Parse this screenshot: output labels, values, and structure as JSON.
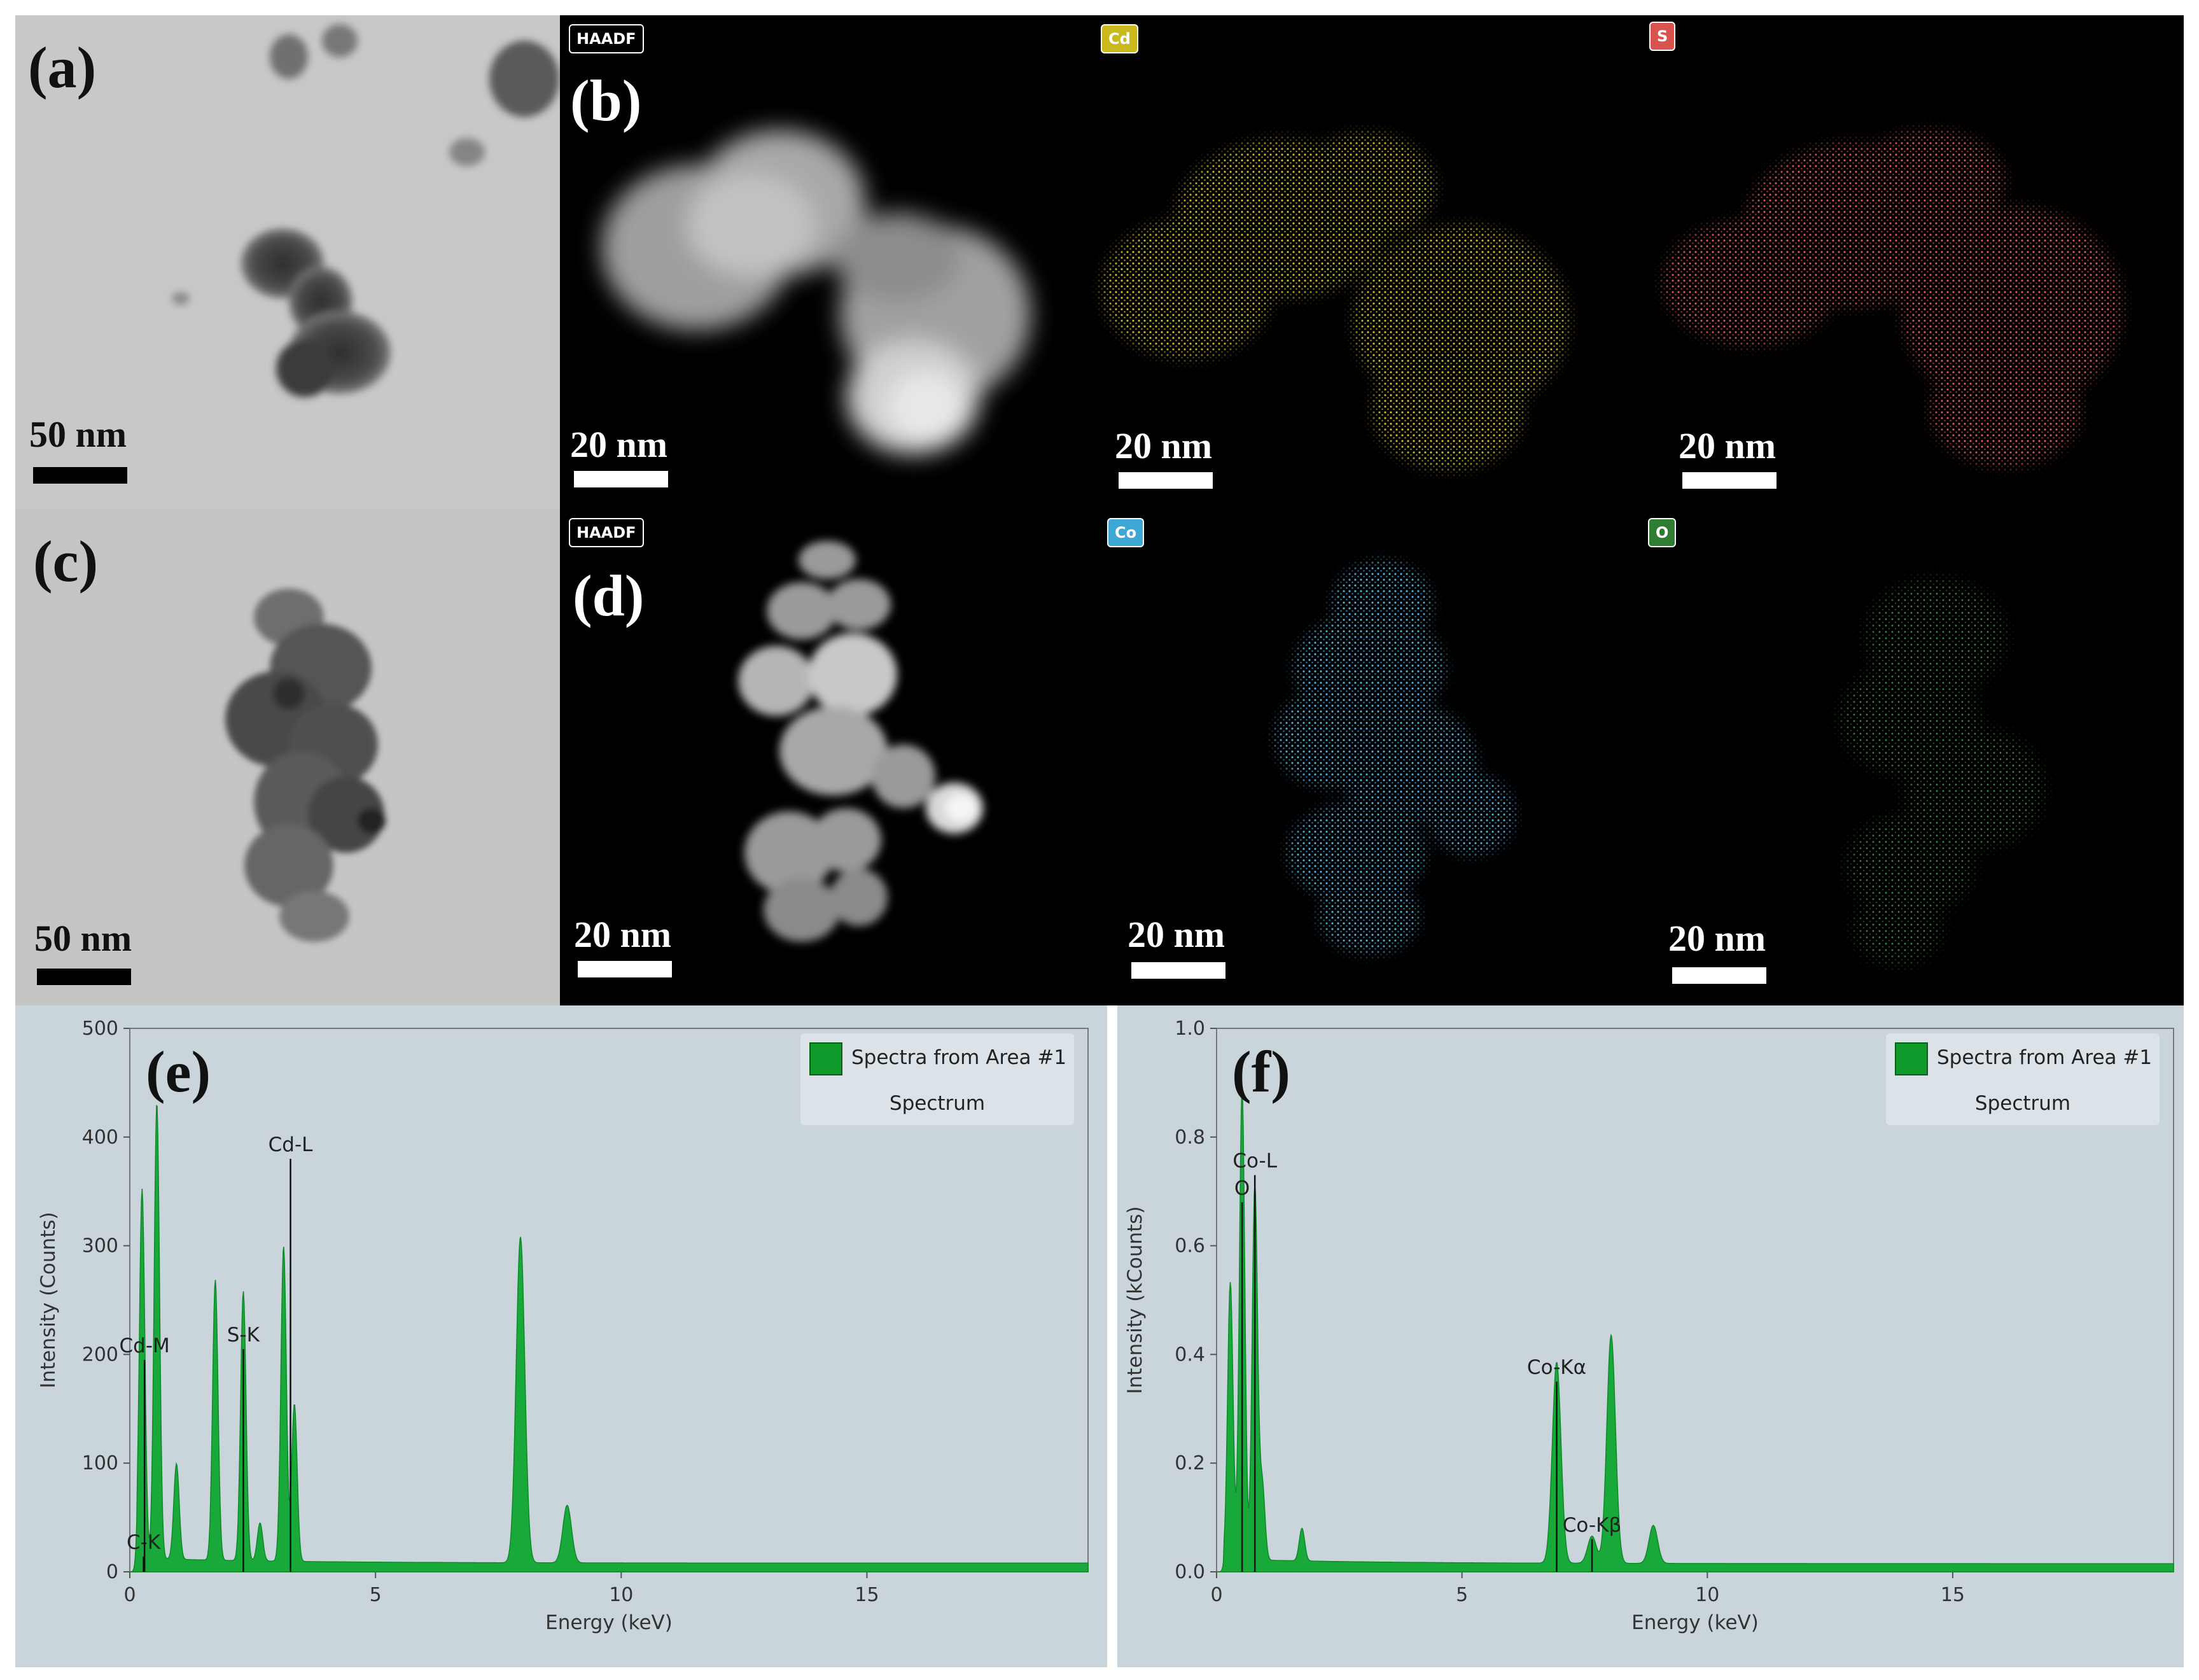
{
  "panels": {
    "a": {
      "label": "(a)",
      "scale": "50 nm"
    },
    "b": {
      "label": "(b)",
      "tag": "HAADF",
      "scale": "20 nm"
    },
    "cd": {
      "tag": "Cd",
      "scale": "20 nm",
      "tag_color": "#c9b81e"
    },
    "s": {
      "tag": "S",
      "scale": "20 nm",
      "tag_color": "#d9534f"
    },
    "c": {
      "label": "(c)",
      "scale": "50 nm"
    },
    "d": {
      "label": "(d)",
      "tag": "HAADF",
      "scale": "20 nm"
    },
    "co": {
      "tag": "Co",
      "scale": "20 nm",
      "tag_color": "#3fa7d6"
    },
    "o": {
      "tag": "O",
      "scale": "20 nm",
      "tag_color": "#2e7d32"
    }
  },
  "chart_data": [
    {
      "type": "area",
      "panel_label": "(e)",
      "xlabel": "Energy (keV)",
      "ylabel": "Intensity (Counts)",
      "xlim": [
        0,
        19.5
      ],
      "ylim": [
        0,
        500
      ],
      "x_ticks": [
        0,
        5,
        10,
        15
      ],
      "y_ticks": [
        0,
        100,
        200,
        300,
        400,
        500
      ],
      "legend": {
        "entry": "Spectra from Area #1",
        "sub": "Spectrum"
      },
      "series_color": "#19a83a",
      "baseline": 8,
      "peaks": [
        {
          "x": 0.25,
          "y": 340
        },
        {
          "x": 0.55,
          "y": 420
        },
        {
          "x": 0.95,
          "y": 88
        },
        {
          "x": 1.74,
          "y": 258
        },
        {
          "x": 2.31,
          "y": 248
        },
        {
          "x": 2.65,
          "y": 35
        },
        {
          "x": 3.13,
          "y": 290
        },
        {
          "x": 3.35,
          "y": 145
        },
        {
          "x": 7.95,
          "y": 300
        },
        {
          "x": 8.9,
          "y": 53
        }
      ],
      "markers": [
        {
          "x": 0.28,
          "y": 14,
          "label": "C-K"
        },
        {
          "x": 0.3,
          "y": 195,
          "label": "Cd-M"
        },
        {
          "x": 2.31,
          "y": 205,
          "label": "S-K"
        },
        {
          "x": 3.27,
          "y": 380,
          "label": "Cd-L"
        }
      ]
    },
    {
      "type": "area",
      "panel_label": "(f)",
      "xlabel": "Energy (keV)",
      "ylabel": "Intensity (kCounts)",
      "xlim": [
        0,
        19.5
      ],
      "ylim": [
        0,
        1.0
      ],
      "x_ticks": [
        0,
        5,
        10,
        15
      ],
      "y_ticks": [
        0.0,
        0.2,
        0.4,
        0.6,
        0.8,
        1.0
      ],
      "legend": {
        "entry": "Spectra from Area #1",
        "sub": "Spectrum"
      },
      "series_color": "#19a83a",
      "baseline": 0.015,
      "peaks": [
        {
          "x": 0.28,
          "y": 0.51
        },
        {
          "x": 0.52,
          "y": 0.87
        },
        {
          "x": 0.78,
          "y": 0.69
        },
        {
          "x": 0.93,
          "y": 0.14
        },
        {
          "x": 1.74,
          "y": 0.06
        },
        {
          "x": 6.93,
          "y": 0.37
        },
        {
          "x": 7.65,
          "y": 0.05
        },
        {
          "x": 8.04,
          "y": 0.42
        },
        {
          "x": 8.9,
          "y": 0.07
        }
      ],
      "markers": [
        {
          "x": 0.52,
          "y": 0.68,
          "label": "O"
        },
        {
          "x": 0.78,
          "y": 0.73,
          "label": "Co-L"
        },
        {
          "x": 6.93,
          "y": 0.35,
          "label": "Co-Kα"
        },
        {
          "x": 7.65,
          "y": 0.06,
          "label": "Co-Kβ"
        }
      ]
    }
  ]
}
